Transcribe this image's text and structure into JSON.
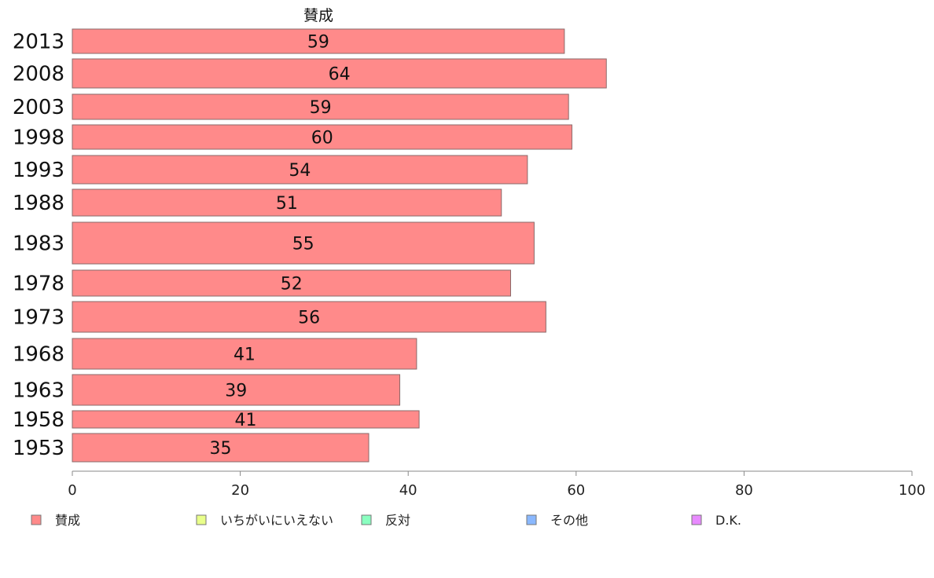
{
  "chart_data": {
    "type": "bar",
    "orientation": "horizontal",
    "title": "賛成",
    "categories": [
      "2013",
      "2008",
      "2003",
      "1998",
      "1993",
      "1988",
      "1983",
      "1978",
      "1973",
      "1968",
      "1963",
      "1958",
      "1953"
    ],
    "series": [
      {
        "name": "賛成",
        "color": "#ff8a8a",
        "values": [
          58.6,
          63.6,
          59.1,
          59.5,
          54.2,
          51.1,
          55.0,
          52.2,
          56.4,
          41.0,
          39.0,
          41.3,
          35.3
        ],
        "labels": [
          "59",
          "64",
          "59",
          "60",
          "54",
          "51",
          "55",
          "52",
          "56",
          "41",
          "39",
          "41",
          "35"
        ]
      }
    ],
    "xlim": [
      0,
      100
    ],
    "xticks": [
      "0",
      "20",
      "40",
      "60",
      "80",
      "100"
    ],
    "grid": false,
    "legend_position": "bottom",
    "legend": [
      {
        "label": "賛成",
        "color": "#ff8a8a"
      },
      {
        "label": "いちがいにいえない",
        "color": "#e9ff8a"
      },
      {
        "label": "反対",
        "color": "#8affc0"
      },
      {
        "label": "その他",
        "color": "#8ab8ff"
      },
      {
        "label": "D.K.",
        "color": "#e88aff"
      }
    ]
  }
}
